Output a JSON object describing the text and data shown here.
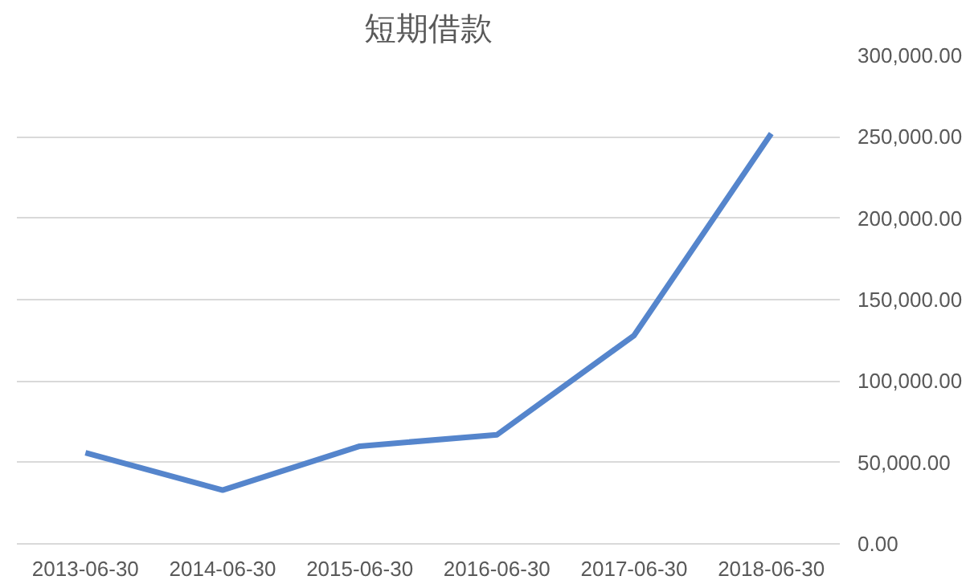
{
  "chart_data": {
    "type": "line",
    "title": "短期借款",
    "categories": [
      "2013-06-30",
      "2014-06-30",
      "2015-06-30",
      "2016-06-30",
      "2017-06-30",
      "2018-06-30"
    ],
    "series": [
      {
        "color": "#5585cc",
        "values": [
          56000,
          33000,
          60000,
          67000,
          128000,
          252000
        ]
      }
    ],
    "ylim": [
      0,
      300000
    ],
    "yticks": [
      {
        "value": 0,
        "label": "0.00"
      },
      {
        "value": 50000,
        "label": "50,000.00"
      },
      {
        "value": 100000,
        "label": "100,000.00"
      },
      {
        "value": 150000,
        "label": "150,000.00"
      },
      {
        "value": 200000,
        "label": "200,000.00"
      },
      {
        "value": 250000,
        "label": "250,000.00"
      },
      {
        "value": 300000,
        "label": "300,000.00"
      }
    ],
    "grid": "y",
    "marker": "none",
    "line_style": "solid"
  }
}
